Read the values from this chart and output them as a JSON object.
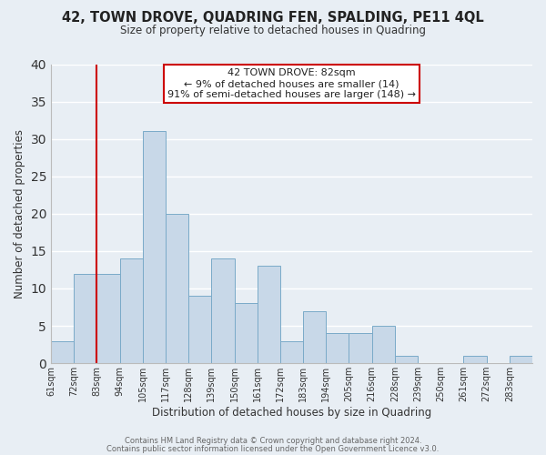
{
  "title": "42, TOWN DROVE, QUADRING FEN, SPALDING, PE11 4QL",
  "subtitle": "Size of property relative to detached houses in Quadring",
  "xlabel": "Distribution of detached houses by size in Quadring",
  "ylabel": "Number of detached properties",
  "bin_labels": [
    "61sqm",
    "72sqm",
    "83sqm",
    "94sqm",
    "105sqm",
    "117sqm",
    "128sqm",
    "139sqm",
    "150sqm",
    "161sqm",
    "172sqm",
    "183sqm",
    "194sqm",
    "205sqm",
    "216sqm",
    "228sqm",
    "239sqm",
    "250sqm",
    "261sqm",
    "272sqm",
    "283sqm"
  ],
  "bar_heights": [
    3,
    12,
    12,
    14,
    31,
    20,
    9,
    14,
    8,
    13,
    3,
    7,
    4,
    4,
    5,
    1,
    0,
    0,
    1,
    0,
    1
  ],
  "bar_color": "#c8d8e8",
  "bar_edge_color": "#7aaac8",
  "highlight_color": "#cc0000",
  "ylim": [
    0,
    40
  ],
  "yticks": [
    0,
    5,
    10,
    15,
    20,
    25,
    30,
    35,
    40
  ],
  "annotation_title": "42 TOWN DROVE: 82sqm",
  "annotation_line1": "← 9% of detached houses are smaller (14)",
  "annotation_line2": "91% of semi-detached houses are larger (148) →",
  "annotation_box_color": "#ffffff",
  "annotation_box_edge": "#cc0000",
  "footer1": "Contains HM Land Registry data © Crown copyright and database right 2024.",
  "footer2": "Contains public sector information licensed under the Open Government Licence v3.0.",
  "background_color": "#e8eef4",
  "grid_color": "#ffffff"
}
